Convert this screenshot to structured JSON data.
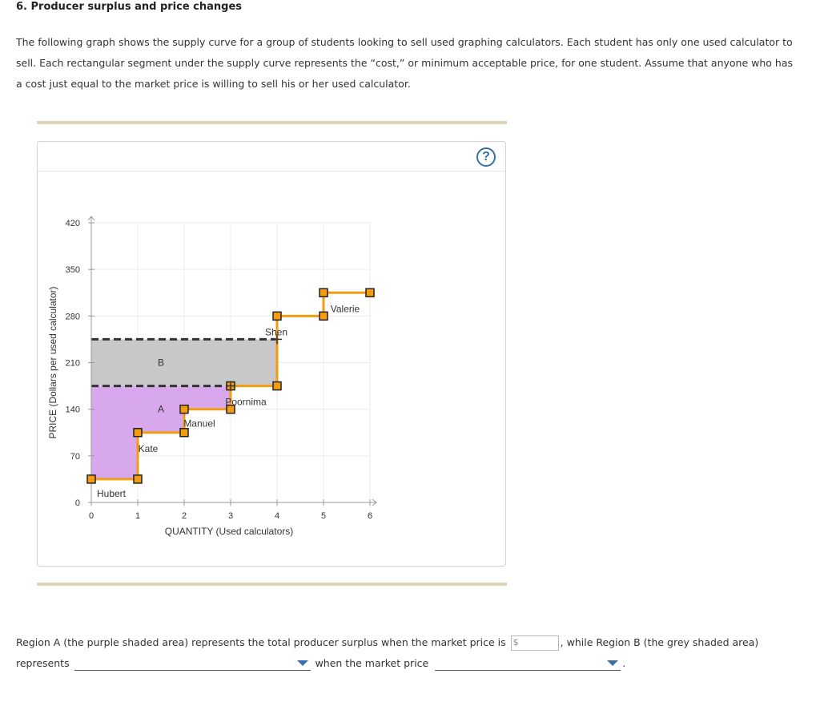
{
  "question": {
    "title": "6. Producer surplus and price changes",
    "intro": "The following graph shows the supply curve for a group of students looking to sell used graphing calculators. Each student has only one used calculator to sell. Each rectangular segment under the supply curve represents the “cost,” or minimum acceptable price, for one student. Assume that anyone who has a cost just equal to the market price is willing to sell his or her used calculator."
  },
  "graph": {
    "help_label": "?"
  },
  "chart_data": {
    "type": "step",
    "xlabel": "QUANTITY (Used calculators)",
    "ylabel": "PRICE (Dollars per used calculator)",
    "xlim": [
      0,
      6
    ],
    "ylim": [
      0,
      420
    ],
    "x_ticks": [
      0,
      1,
      2,
      3,
      4,
      5,
      6
    ],
    "y_ticks": [
      0,
      70,
      140,
      210,
      280,
      350,
      420
    ],
    "supply_steps": [
      {
        "name": "Hubert",
        "from": 0,
        "to": 1,
        "cost": 35
      },
      {
        "name": "Kate",
        "from": 1,
        "to": 2,
        "cost": 105
      },
      {
        "name": "Manuel",
        "from": 2,
        "to": 3,
        "cost": 140
      },
      {
        "name": "Poornima",
        "from": 3,
        "to": 4,
        "cost": 175
      },
      {
        "name": "Shen",
        "from": 4,
        "to": 5,
        "cost": 280
      },
      {
        "name": "Valerie",
        "from": 5,
        "to": 6,
        "cost": 315
      }
    ],
    "price_lines": [
      175,
      245
    ],
    "regions": [
      {
        "label": "A",
        "price": 175,
        "fill": "#d7a8ec"
      },
      {
        "label": "B",
        "price_low": 175,
        "price_high": 245,
        "fill": "#c8c8c8"
      }
    ],
    "colors": {
      "supply": "#f39c12",
      "marker": "#f39c12",
      "marker_border": "#222222",
      "dashed": "#333333"
    }
  },
  "answer": {
    "part1": "Region A (the purple shaded area) represents the total producer surplus when the market price is",
    "currency": "$",
    "part2": ", while Region B (the grey shaded area)",
    "part3": "represents",
    "part4": "when the market price",
    "dropdown1_value": "",
    "dropdown2_value": "",
    "end": "."
  }
}
